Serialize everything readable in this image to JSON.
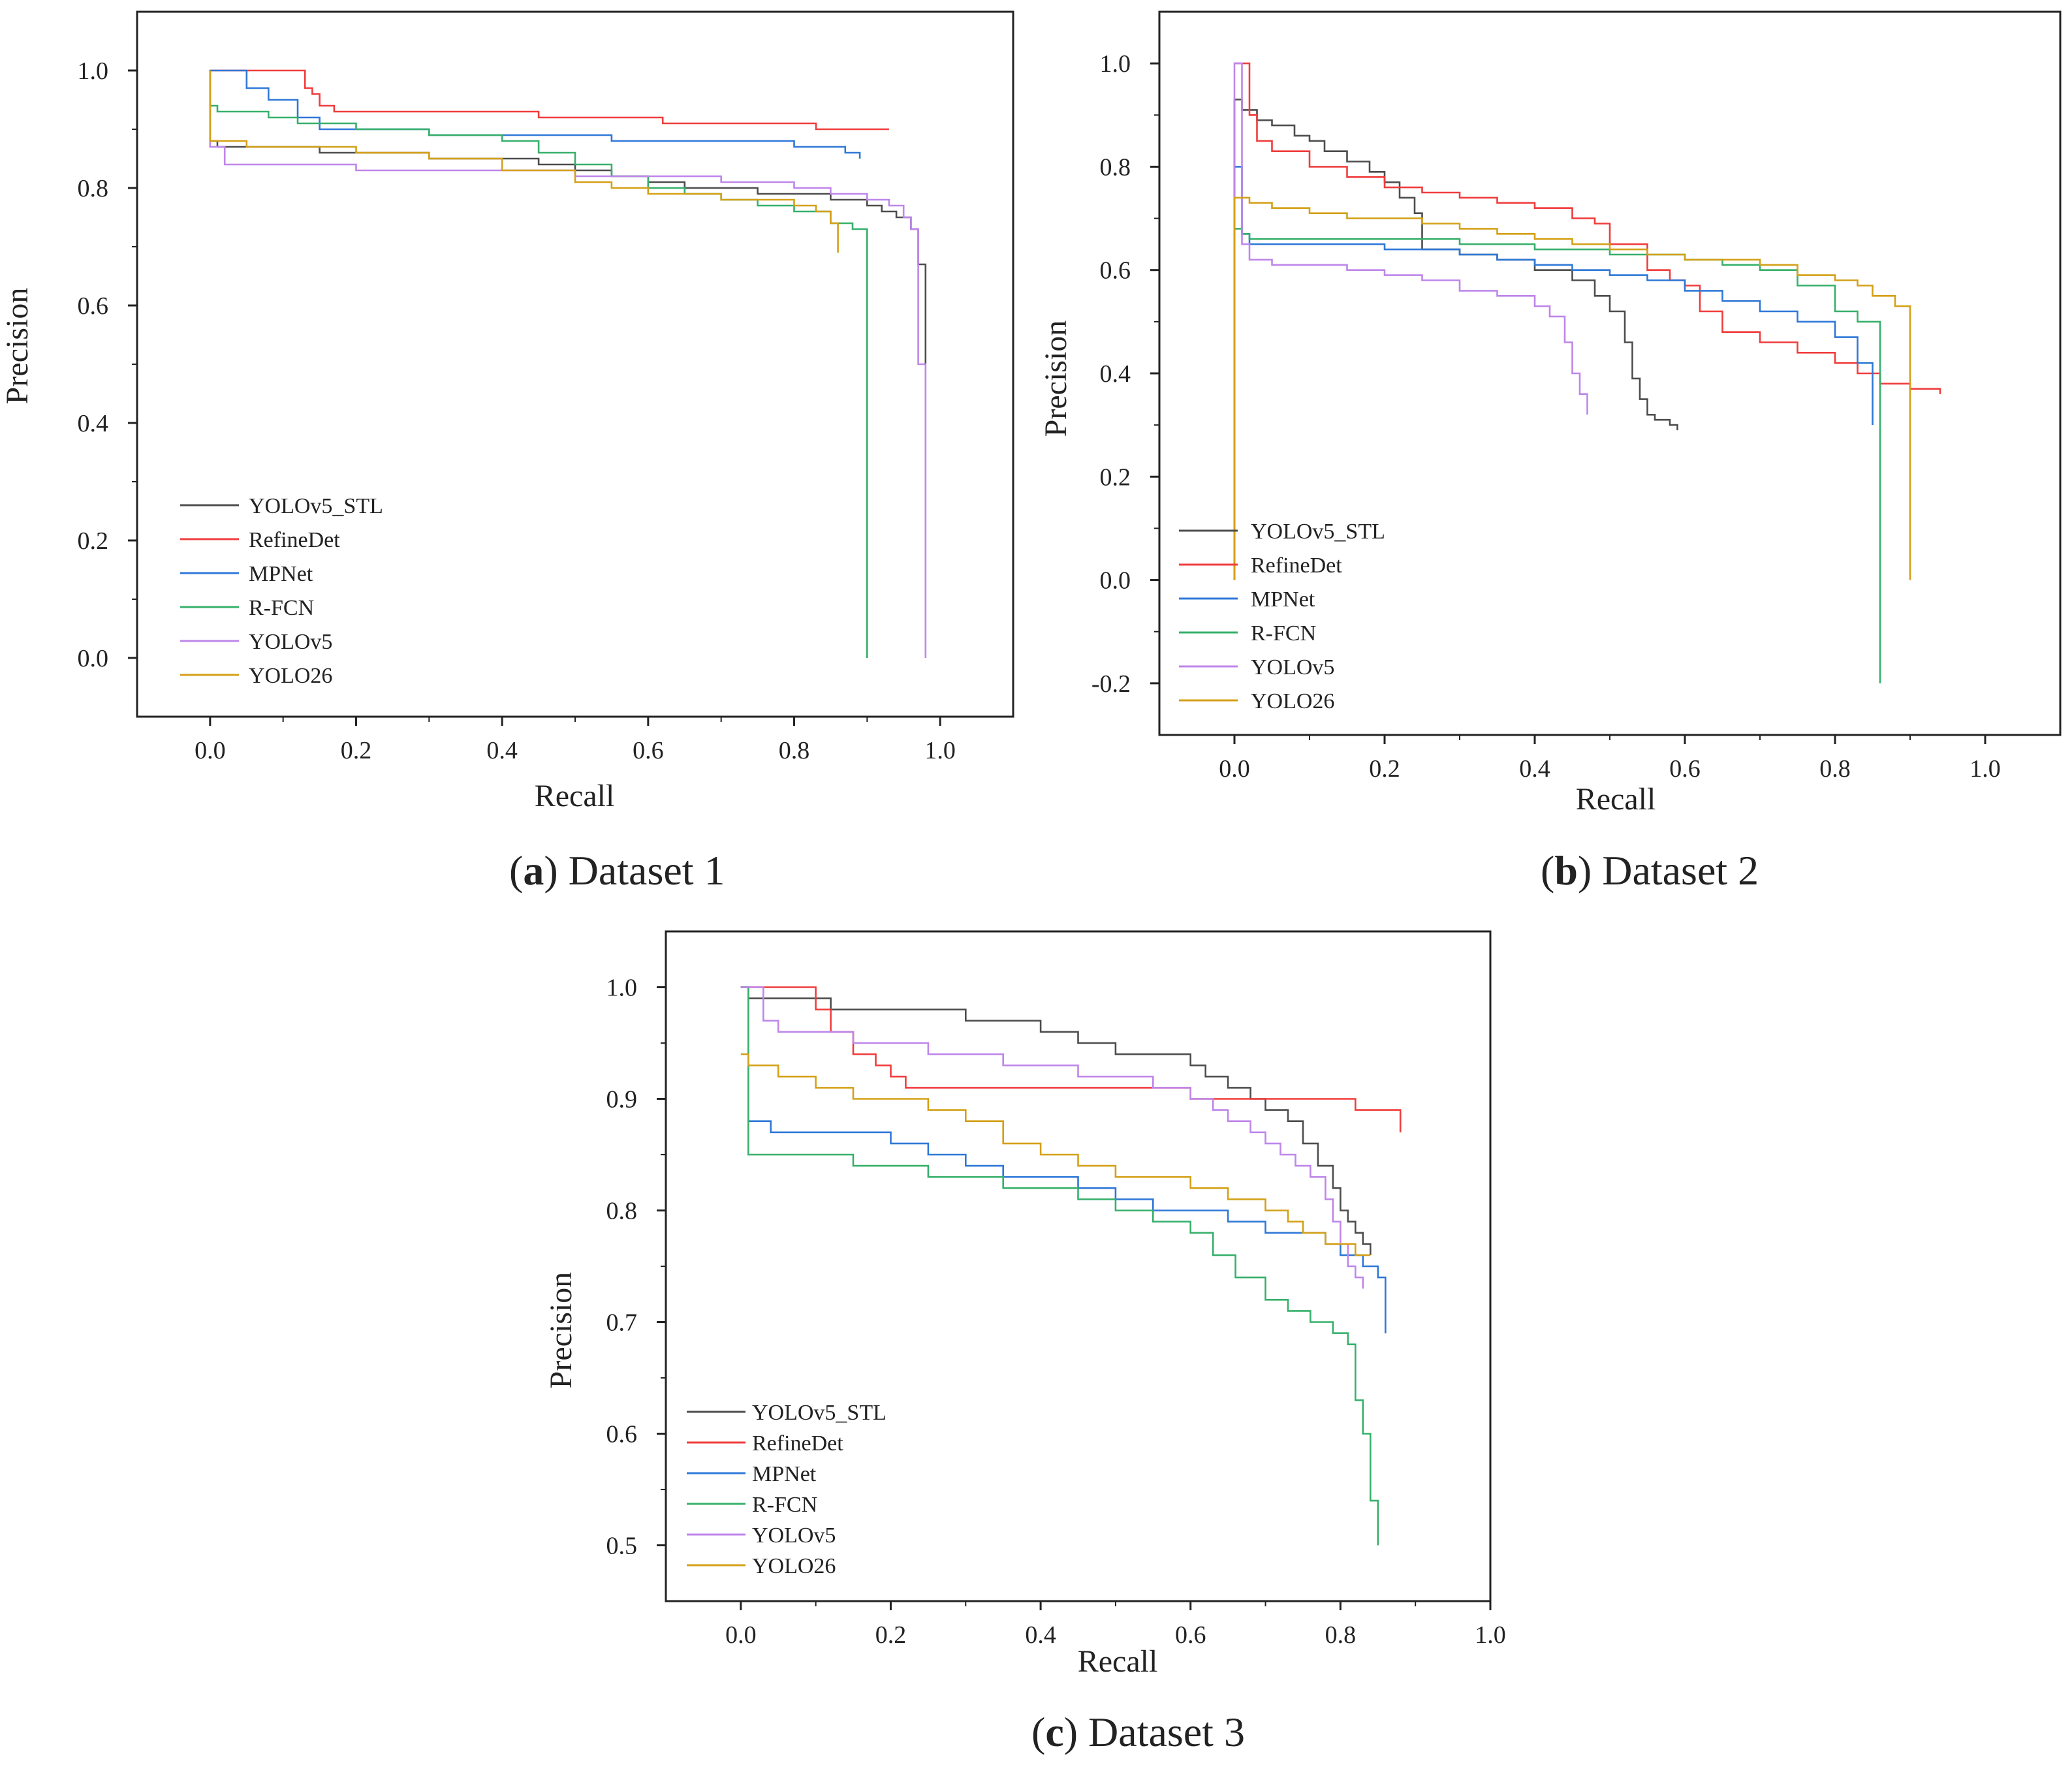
{
  "series_colors": {
    "YOLOv5_STL": "#4d4d4d",
    "RefineDet": "#f03c3c",
    "MPNet": "#2f78d8",
    "R-FCN": "#36b06a",
    "YOLOv5": "#bf86ea",
    "YOLO26": "#d4a017"
  },
  "chart_data": [
    {
      "type": "line",
      "caption": {
        "open": "(",
        "letter": "a",
        "close": ")",
        "text": " Dataset 1"
      },
      "xlabel": "Recall",
      "ylabel": "Precision",
      "xlim": [
        -0.1,
        1.1
      ],
      "ylim": [
        -0.1,
        1.1
      ],
      "xticks": [
        0.0,
        0.2,
        0.4,
        0.6,
        0.8,
        1.0
      ],
      "xtick_labels": [
        "0.0",
        "0.2",
        "0.4",
        "0.6",
        "0.8",
        "1.0"
      ],
      "yticks": [
        0.0,
        0.2,
        0.4,
        0.6,
        0.8,
        1.0
      ],
      "ytick_labels": [
        "0.0",
        "0.2",
        "0.4",
        "0.6",
        "0.8",
        "1.0"
      ],
      "legend": [
        "YOLOv5_STL",
        "RefineDet",
        "MPNet",
        "R-FCN",
        "YOLOv5",
        "YOLO26"
      ],
      "legend_position": "bottom-left",
      "series": [
        {
          "name": "YOLOv5_STL",
          "x": [
            0.0,
            0.0,
            0.01,
            0.05,
            0.1,
            0.15,
            0.2,
            0.3,
            0.4,
            0.45,
            0.5,
            0.55,
            0.6,
            0.65,
            0.7,
            0.75,
            0.8,
            0.85,
            0.9,
            0.92,
            0.94,
            0.96,
            0.97,
            0.98,
            0.98
          ],
          "y": [
            1.0,
            0.88,
            0.87,
            0.87,
            0.87,
            0.86,
            0.86,
            0.85,
            0.85,
            0.84,
            0.83,
            0.82,
            0.81,
            0.8,
            0.8,
            0.79,
            0.79,
            0.78,
            0.77,
            0.76,
            0.75,
            0.73,
            0.67,
            0.67,
            0.5
          ]
        },
        {
          "name": "RefineDet",
          "x": [
            0.0,
            0.0,
            0.12,
            0.13,
            0.14,
            0.15,
            0.17,
            0.3,
            0.42,
            0.45,
            0.6,
            0.62,
            0.7,
            0.8,
            0.83,
            0.85,
            0.93
          ],
          "y": [
            0.88,
            1.0,
            1.0,
            0.97,
            0.96,
            0.94,
            0.93,
            0.93,
            0.93,
            0.92,
            0.92,
            0.91,
            0.91,
            0.91,
            0.9,
            0.9,
            0.9
          ]
        },
        {
          "name": "MPNet",
          "x": [
            0.0,
            0.01,
            0.04,
            0.05,
            0.08,
            0.12,
            0.15,
            0.2,
            0.3,
            0.45,
            0.55,
            0.6,
            0.7,
            0.75,
            0.8,
            0.85,
            0.87,
            0.89,
            0.89
          ],
          "y": [
            1.0,
            1.0,
            1.0,
            0.97,
            0.95,
            0.92,
            0.9,
            0.9,
            0.89,
            0.89,
            0.88,
            0.88,
            0.88,
            0.88,
            0.87,
            0.87,
            0.86,
            0.86,
            0.85
          ]
        },
        {
          "name": "R-FCN",
          "x": [
            0.0,
            0.0,
            0.01,
            0.03,
            0.08,
            0.12,
            0.2,
            0.3,
            0.4,
            0.45,
            0.5,
            0.55,
            0.6,
            0.65,
            0.7,
            0.75,
            0.8,
            0.85,
            0.88,
            0.9,
            0.9
          ],
          "y": [
            1.0,
            0.94,
            0.93,
            0.93,
            0.92,
            0.91,
            0.9,
            0.89,
            0.88,
            0.86,
            0.84,
            0.82,
            0.8,
            0.79,
            0.78,
            0.77,
            0.76,
            0.74,
            0.73,
            0.72,
            0.0
          ]
        },
        {
          "name": "YOLOv5",
          "x": [
            0.0,
            0.0,
            0.02,
            0.1,
            0.2,
            0.3,
            0.4,
            0.5,
            0.6,
            0.7,
            0.8,
            0.85,
            0.9,
            0.93,
            0.95,
            0.96,
            0.97,
            0.97,
            0.98,
            0.98
          ],
          "y": [
            1.0,
            0.87,
            0.84,
            0.84,
            0.83,
            0.83,
            0.83,
            0.82,
            0.82,
            0.81,
            0.8,
            0.79,
            0.78,
            0.77,
            0.75,
            0.73,
            0.6,
            0.5,
            0.4,
            0.0
          ]
        },
        {
          "name": "YOLO26",
          "x": [
            0.0,
            0.0,
            0.01,
            0.05,
            0.1,
            0.2,
            0.3,
            0.4,
            0.5,
            0.55,
            0.6,
            0.65,
            0.7,
            0.75,
            0.8,
            0.83,
            0.85,
            0.86,
            0.86
          ],
          "y": [
            1.0,
            0.88,
            0.88,
            0.87,
            0.87,
            0.86,
            0.85,
            0.83,
            0.81,
            0.8,
            0.79,
            0.79,
            0.78,
            0.78,
            0.77,
            0.76,
            0.74,
            0.72,
            0.69
          ]
        }
      ]
    },
    {
      "type": "line",
      "caption": {
        "open": "(",
        "letter": "b",
        "close": ")",
        "text": " Dataset 2"
      },
      "xlabel": "Recall",
      "ylabel": "Precision",
      "xlim": [
        -0.1,
        1.1
      ],
      "ylim": [
        -0.3,
        1.1
      ],
      "xticks": [
        0.0,
        0.2,
        0.4,
        0.6,
        0.8,
        1.0
      ],
      "xtick_labels": [
        "0.0",
        "0.2",
        "0.4",
        "0.6",
        "0.8",
        "1.0"
      ],
      "yticks": [
        -0.2,
        0.0,
        0.2,
        0.4,
        0.6,
        0.8,
        1.0
      ],
      "ytick_labels": [
        "-0.2",
        "0.0",
        "0.2",
        "0.4",
        "0.6",
        "0.8",
        "1.0"
      ],
      "legend": [
        "YOLOv5_STL",
        "RefineDet",
        "MPNet",
        "R-FCN",
        "YOLOv5",
        "YOLO26"
      ],
      "legend_position": "bottom-left",
      "series": [
        {
          "name": "YOLOv5_STL",
          "x": [
            0.0,
            0.0,
            0.01,
            0.03,
            0.05,
            0.08,
            0.1,
            0.12,
            0.15,
            0.18,
            0.2,
            0.22,
            0.24,
            0.25,
            0.25,
            0.3,
            0.35,
            0.4,
            0.45,
            0.48,
            0.5,
            0.52,
            0.53,
            0.54,
            0.55,
            0.56,
            0.58,
            0.59
          ],
          "y": [
            0.0,
            0.93,
            0.91,
            0.89,
            0.88,
            0.86,
            0.85,
            0.83,
            0.81,
            0.79,
            0.77,
            0.74,
            0.71,
            0.7,
            0.64,
            0.63,
            0.62,
            0.6,
            0.58,
            0.55,
            0.52,
            0.46,
            0.39,
            0.35,
            0.32,
            0.31,
            0.3,
            0.29
          ]
        },
        {
          "name": "RefineDet",
          "x": [
            0.0,
            0.02,
            0.02,
            0.03,
            0.05,
            0.1,
            0.15,
            0.2,
            0.25,
            0.3,
            0.35,
            0.4,
            0.45,
            0.48,
            0.5,
            0.55,
            0.58,
            0.6,
            0.62,
            0.65,
            0.7,
            0.75,
            0.8,
            0.83,
            0.86,
            0.9,
            0.94
          ],
          "y": [
            1.0,
            1.0,
            0.9,
            0.85,
            0.83,
            0.8,
            0.78,
            0.76,
            0.75,
            0.74,
            0.73,
            0.72,
            0.7,
            0.69,
            0.65,
            0.6,
            0.58,
            0.57,
            0.52,
            0.48,
            0.46,
            0.44,
            0.42,
            0.4,
            0.38,
            0.37,
            0.36
          ]
        },
        {
          "name": "MPNet",
          "x": [
            0.0,
            0.0,
            0.01,
            0.01,
            0.02,
            0.1,
            0.2,
            0.3,
            0.35,
            0.4,
            0.45,
            0.5,
            0.55,
            0.6,
            0.65,
            0.7,
            0.75,
            0.8,
            0.83,
            0.85,
            0.85
          ],
          "y": [
            0.0,
            0.8,
            0.8,
            0.67,
            0.65,
            0.65,
            0.64,
            0.63,
            0.62,
            0.61,
            0.6,
            0.59,
            0.58,
            0.56,
            0.54,
            0.52,
            0.5,
            0.47,
            0.42,
            0.35,
            0.3
          ]
        },
        {
          "name": "R-FCN",
          "x": [
            0.0,
            0.0,
            0.01,
            0.02,
            0.05,
            0.1,
            0.2,
            0.3,
            0.4,
            0.5,
            0.6,
            0.65,
            0.7,
            0.75,
            0.8,
            0.83,
            0.86,
            0.86
          ],
          "y": [
            0.0,
            0.68,
            0.67,
            0.66,
            0.66,
            0.66,
            0.66,
            0.65,
            0.64,
            0.63,
            0.62,
            0.61,
            0.6,
            0.57,
            0.52,
            0.5,
            0.47,
            -0.2
          ]
        },
        {
          "name": "YOLOv5",
          "x": [
            0.0,
            0.0,
            0.01,
            0.02,
            0.05,
            0.1,
            0.15,
            0.2,
            0.25,
            0.3,
            0.35,
            0.4,
            0.42,
            0.44,
            0.45,
            0.46,
            0.47,
            0.47
          ],
          "y": [
            0.0,
            1.0,
            0.65,
            0.62,
            0.61,
            0.61,
            0.6,
            0.59,
            0.58,
            0.56,
            0.55,
            0.53,
            0.51,
            0.46,
            0.4,
            0.36,
            0.35,
            0.32
          ]
        },
        {
          "name": "YOLO26",
          "x": [
            0.0,
            0.0,
            0.02,
            0.05,
            0.1,
            0.15,
            0.2,
            0.25,
            0.3,
            0.35,
            0.4,
            0.45,
            0.5,
            0.55,
            0.6,
            0.65,
            0.7,
            0.75,
            0.8,
            0.83,
            0.85,
            0.88,
            0.9,
            0.9
          ],
          "y": [
            0.0,
            0.74,
            0.73,
            0.72,
            0.71,
            0.7,
            0.7,
            0.69,
            0.68,
            0.67,
            0.66,
            0.65,
            0.64,
            0.63,
            0.62,
            0.62,
            0.61,
            0.59,
            0.58,
            0.57,
            0.55,
            0.53,
            0.52,
            0.0
          ]
        }
      ]
    },
    {
      "type": "line",
      "caption": {
        "open": "(",
        "letter": "c",
        "close": ")",
        "text": " Dataset 3"
      },
      "xlabel": "Recall",
      "ylabel": "Precision",
      "xlim": [
        -0.1,
        1.0
      ],
      "ylim": [
        0.45,
        1.05
      ],
      "xticks": [
        0.0,
        0.2,
        0.4,
        0.6,
        0.8,
        1.0
      ],
      "xtick_labels": [
        "0.0",
        "0.2",
        "0.4",
        "0.6",
        "0.8",
        "1.0"
      ],
      "yticks": [
        0.5,
        0.6,
        0.7,
        0.8,
        0.9,
        1.0
      ],
      "ytick_labels": [
        "0.5",
        "0.6",
        "0.7",
        "0.8",
        "0.9",
        "1.0"
      ],
      "legend": [
        "YOLOv5_STL",
        "RefineDet",
        "MPNet",
        "R-FCN",
        "YOLOv5",
        "YOLO26"
      ],
      "legend_position": "bottom-left",
      "series": [
        {
          "name": "YOLOv5_STL",
          "x": [
            0.0,
            0.01,
            0.05,
            0.1,
            0.12,
            0.2,
            0.28,
            0.3,
            0.35,
            0.4,
            0.45,
            0.5,
            0.55,
            0.6,
            0.62,
            0.65,
            0.68,
            0.7,
            0.73,
            0.75,
            0.77,
            0.79,
            0.8,
            0.81,
            0.82,
            0.83,
            0.84
          ],
          "y": [
            1.0,
            0.99,
            0.99,
            0.99,
            0.98,
            0.98,
            0.98,
            0.97,
            0.97,
            0.96,
            0.95,
            0.94,
            0.94,
            0.93,
            0.92,
            0.91,
            0.9,
            0.89,
            0.88,
            0.86,
            0.84,
            0.82,
            0.8,
            0.79,
            0.78,
            0.77,
            0.76
          ]
        },
        {
          "name": "RefineDet",
          "x": [
            0.0,
            0.03,
            0.09,
            0.1,
            0.12,
            0.15,
            0.18,
            0.2,
            0.22,
            0.3,
            0.4,
            0.5,
            0.6,
            0.7,
            0.8,
            0.82,
            0.85,
            0.88,
            0.88
          ],
          "y": [
            1.0,
            1.0,
            1.0,
            0.98,
            0.96,
            0.94,
            0.93,
            0.92,
            0.91,
            0.91,
            0.91,
            0.91,
            0.9,
            0.9,
            0.9,
            0.89,
            0.89,
            0.89,
            0.87
          ]
        },
        {
          "name": "MPNet",
          "x": [
            0.0,
            0.01,
            0.01,
            0.04,
            0.1,
            0.2,
            0.25,
            0.3,
            0.35,
            0.4,
            0.45,
            0.5,
            0.55,
            0.6,
            0.65,
            0.7,
            0.75,
            0.78,
            0.8,
            0.83,
            0.85,
            0.86,
            0.86
          ],
          "y": [
            1.0,
            1.0,
            0.88,
            0.87,
            0.87,
            0.86,
            0.85,
            0.84,
            0.83,
            0.83,
            0.82,
            0.81,
            0.8,
            0.8,
            0.79,
            0.78,
            0.78,
            0.77,
            0.76,
            0.75,
            0.74,
            0.73,
            0.69
          ]
        },
        {
          "name": "R-FCN",
          "x": [
            0.0,
            0.01,
            0.01,
            0.05,
            0.1,
            0.15,
            0.2,
            0.25,
            0.3,
            0.35,
            0.4,
            0.45,
            0.5,
            0.55,
            0.6,
            0.63,
            0.66,
            0.7,
            0.73,
            0.76,
            0.79,
            0.81,
            0.82,
            0.82,
            0.83,
            0.84,
            0.84,
            0.85,
            0.85
          ],
          "y": [
            1.0,
            1.0,
            0.85,
            0.85,
            0.85,
            0.84,
            0.84,
            0.83,
            0.83,
            0.82,
            0.82,
            0.81,
            0.8,
            0.79,
            0.78,
            0.76,
            0.74,
            0.72,
            0.71,
            0.7,
            0.69,
            0.68,
            0.66,
            0.63,
            0.6,
            0.58,
            0.54,
            0.53,
            0.5
          ]
        },
        {
          "name": "YOLOv5",
          "x": [
            0.0,
            0.02,
            0.03,
            0.05,
            0.1,
            0.15,
            0.2,
            0.25,
            0.3,
            0.35,
            0.4,
            0.45,
            0.5,
            0.55,
            0.6,
            0.63,
            0.65,
            0.68,
            0.7,
            0.72,
            0.74,
            0.76,
            0.78,
            0.79,
            0.8,
            0.81,
            0.82,
            0.83
          ],
          "y": [
            1.0,
            1.0,
            0.97,
            0.96,
            0.96,
            0.95,
            0.95,
            0.94,
            0.94,
            0.93,
            0.93,
            0.92,
            0.92,
            0.91,
            0.9,
            0.89,
            0.88,
            0.87,
            0.86,
            0.85,
            0.84,
            0.83,
            0.81,
            0.79,
            0.77,
            0.75,
            0.74,
            0.73
          ]
        },
        {
          "name": "YOLO26",
          "x": [
            0.0,
            0.01,
            0.01,
            0.05,
            0.1,
            0.15,
            0.2,
            0.25,
            0.3,
            0.35,
            0.4,
            0.45,
            0.5,
            0.55,
            0.6,
            0.65,
            0.7,
            0.73,
            0.75,
            0.78,
            0.8,
            0.82,
            0.83,
            0.84
          ],
          "y": [
            0.94,
            0.94,
            0.93,
            0.92,
            0.91,
            0.9,
            0.9,
            0.89,
            0.88,
            0.86,
            0.85,
            0.84,
            0.83,
            0.83,
            0.82,
            0.81,
            0.8,
            0.79,
            0.78,
            0.77,
            0.77,
            0.76,
            0.76,
            0.76
          ]
        }
      ]
    }
  ]
}
